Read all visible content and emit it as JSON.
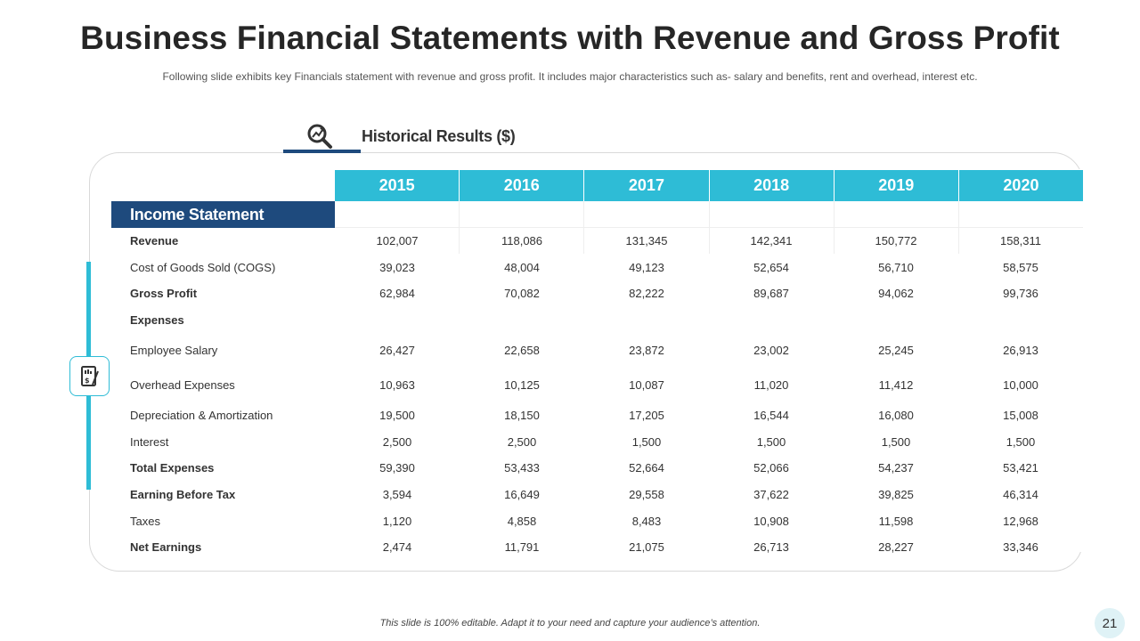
{
  "header": {
    "title": "Business Financial Statements with Revenue and Gross Profit",
    "subtitle": "Following slide exhibits key Financials statement with revenue  and gross profit. It includes major characteristics such as- salary and benefits, rent and overhead,  interest etc."
  },
  "section": {
    "title": "Historical Results ($)",
    "icon": "search-chart-icon",
    "side_icon": "financial-document-icon"
  },
  "table": {
    "section_label": "Income Statement",
    "years": [
      "2015",
      "2016",
      "2017",
      "2018",
      "2019",
      "2020"
    ],
    "rows": [
      {
        "label": "Revenue",
        "bold": true,
        "values": [
          "102,007",
          "118,086",
          "131,345",
          "142,341",
          "150,772",
          "158,311"
        ]
      },
      {
        "label": "Cost of Goods Sold (COGS)",
        "bold": false,
        "values": [
          "39,023",
          "48,004",
          "49,123",
          "52,654",
          "56,710",
          "58,575"
        ]
      },
      {
        "label": "Gross  Profit",
        "bold": true,
        "values": [
          "62,984",
          "70,082",
          "82,222",
          "89,687",
          "94,062",
          "99,736"
        ]
      },
      {
        "label": "Expenses",
        "bold": true,
        "values": [
          "",
          "",
          "",
          "",
          "",
          ""
        ]
      },
      {
        "label": "Employee Salary",
        "bold": false,
        "values": [
          "26,427",
          "22,658",
          "23,872",
          "23,002",
          "25,245",
          "26,913"
        ]
      },
      {
        "label": "Overhead  Expenses",
        "bold": false,
        "values": [
          "10,963",
          "10,125",
          "10,087",
          "11,020",
          "11,412",
          "10,000"
        ]
      },
      {
        "label": "Depreciation  & Amortization",
        "bold": false,
        "values": [
          "19,500",
          "18,150",
          "17,205",
          "16,544",
          "16,080",
          "15,008"
        ]
      },
      {
        "label": "Interest",
        "bold": false,
        "values": [
          "2,500",
          "2,500",
          "1,500",
          "1,500",
          "1,500",
          "1,500"
        ]
      },
      {
        "label": "Total Expenses",
        "bold": true,
        "values": [
          "59,390",
          "53,433",
          "52,664",
          "52,066",
          "54,237",
          "53,421"
        ]
      },
      {
        "label": "Earning Before Tax",
        "bold": true,
        "values": [
          "3,594",
          "16,649",
          "29,558",
          "37,622",
          "39,825",
          "46,314"
        ]
      },
      {
        "label": "Taxes",
        "bold": false,
        "values": [
          "1,120",
          "4,858",
          "8,483",
          "10,908",
          "11,598",
          "12,968"
        ]
      },
      {
        "label": "Net Earnings",
        "bold": true,
        "values": [
          "2,474",
          "11,791",
          "21,075",
          "26,713",
          "28,227",
          "33,346"
        ]
      }
    ]
  },
  "footer": {
    "note": "This slide is 100% editable. Adapt it to your need and capture your audience’s attention.",
    "page_number": "21"
  },
  "colors": {
    "accent": "#2ebcd6",
    "navy": "#1e4a7d"
  }
}
